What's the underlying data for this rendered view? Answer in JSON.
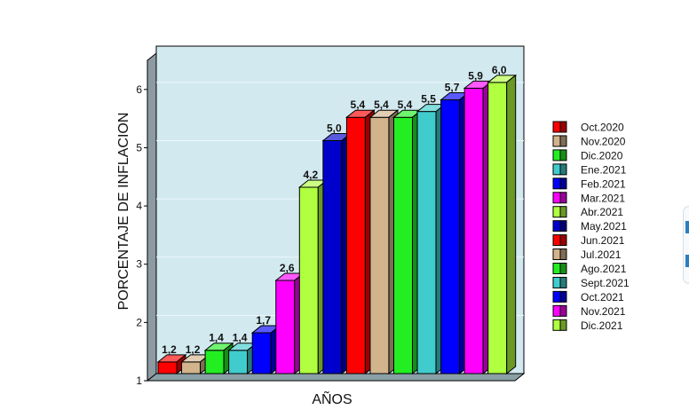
{
  "chart_data": {
    "type": "bar",
    "title": "",
    "xlabel": "AÑOS",
    "ylabel": "PORCENTAJE DE INFLACION",
    "ylim": [
      1,
      6.5
    ],
    "yticks": [
      "1",
      "2",
      "3",
      "4",
      "5",
      "6"
    ],
    "grid": true,
    "legend_position": "right",
    "plot_background": "#d2e9f0",
    "categories": [
      "Oct.2020",
      "Nov.2020",
      "Dic.2020",
      "Ene.2021",
      "Feb.2021",
      "Mar.2021",
      "Abr.2021",
      "May.2021",
      "Jun.2021",
      "Jul.2021",
      "Ago.2021",
      "Sept.2021",
      "Oct.2021",
      "Nov.2021",
      "Dic.2021"
    ],
    "values": [
      1.2,
      1.2,
      1.4,
      1.4,
      1.7,
      2.6,
      4.2,
      5.0,
      5.4,
      5.4,
      5.4,
      5.5,
      5.7,
      5.9,
      6.0
    ],
    "value_labels": [
      "1,2",
      "1,2",
      "1,4",
      "1,4",
      "1,7",
      "2,6",
      "4,2",
      "5,0",
      "5,4",
      "5,4",
      "5,4",
      "5,5",
      "5,7",
      "5,9",
      "6,0"
    ],
    "colors": [
      "#ff0000",
      "#d2b48c",
      "#22ee22",
      "#40cccc",
      "#0000ff",
      "#ff00ff",
      "#b0ff40",
      "#0000cc",
      "#ff0000",
      "#d2b48c",
      "#22ee22",
      "#40cccc",
      "#0000ff",
      "#ff00ff",
      "#b0ff40"
    ]
  }
}
